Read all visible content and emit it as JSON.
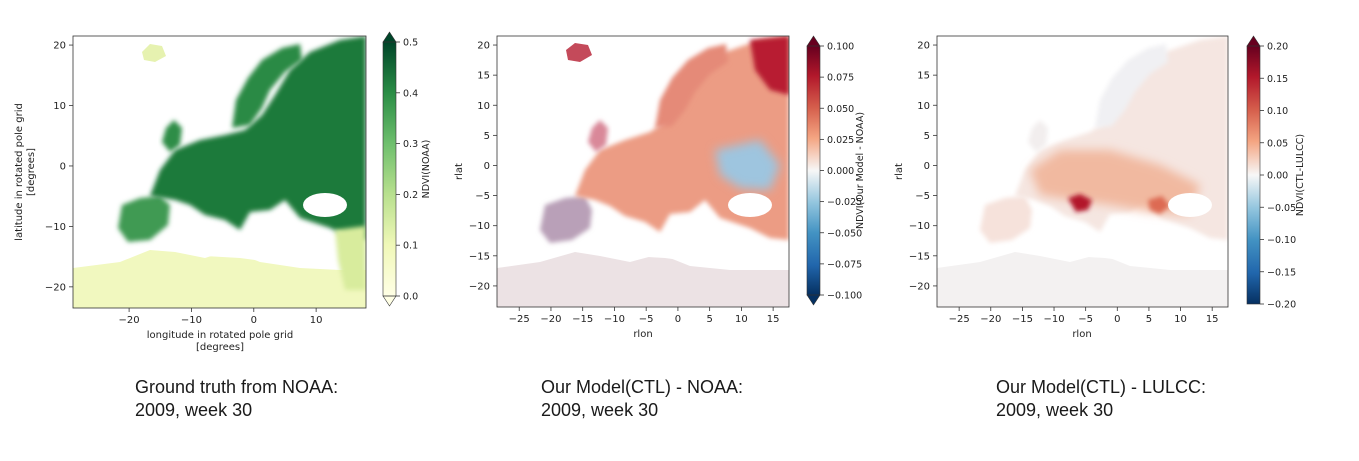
{
  "chart_data": [
    {
      "type": "heatmap",
      "xlabel": "longitude in rotated pole grid\n[degrees]",
      "ylabel": "latitude in rotated pole grid\n[degrees]",
      "xticks": [
        -20,
        -10,
        0,
        10
      ],
      "yticks": [
        -20,
        -10,
        0,
        10,
        20
      ],
      "xlim": [
        -29,
        18
      ],
      "ylim": [
        -23.5,
        21.5
      ],
      "colorbar": {
        "label": "NDVI(NOAA)",
        "colormap": "YlGn",
        "range": [
          0.0,
          0.5
        ],
        "ticks": [
          "0.0",
          "0.1",
          "0.2",
          "0.3",
          "0.4",
          "0.5"
        ],
        "extend": "both"
      },
      "caption": [
        "Ground truth from NOAA:",
        "2009, week 30"
      ]
    },
    {
      "type": "heatmap",
      "xlabel": "rlon",
      "ylabel": "rlat",
      "xticks": [
        -25,
        -20,
        -15,
        -10,
        -5,
        0,
        5,
        10,
        15
      ],
      "yticks": [
        -20,
        -15,
        -10,
        -5,
        0,
        5,
        10,
        15,
        20
      ],
      "xlim": [
        -28.5,
        17.5
      ],
      "ylim": [
        -23.5,
        21.5
      ],
      "colorbar": {
        "label": "NDVI(Our Model - NOAA)",
        "colormap": "RdBu_r",
        "range": [
          -0.1,
          0.1
        ],
        "ticks": [
          "-0.100",
          "-0.075",
          "-0.050",
          "-0.025",
          "0.000",
          "0.025",
          "0.050",
          "0.075",
          "0.100"
        ],
        "extend": "both"
      },
      "caption": [
        "Our Model(CTL)  - NOAA:",
        "2009, week 30"
      ]
    },
    {
      "type": "heatmap",
      "xlabel": "rlon",
      "ylabel": "rlat",
      "xticks": [
        -25,
        -20,
        -15,
        -10,
        -5,
        0,
        5,
        10,
        15
      ],
      "yticks": [
        -20,
        -15,
        -10,
        -5,
        0,
        5,
        10,
        15,
        20
      ],
      "xlim": [
        -28.5,
        17.5
      ],
      "ylim": [
        -23.5,
        21.5
      ],
      "colorbar": {
        "label": "NDVI(CTL-LULCC)",
        "colormap": "RdBu_r",
        "range": [
          -0.2,
          0.2
        ],
        "ticks": [
          "-0.20",
          "-0.15",
          "-0.10",
          "-0.05",
          "0.00",
          "0.05",
          "0.10",
          "0.15",
          "0.20"
        ],
        "extend": "max"
      },
      "caption": [
        "Our Model(CTL)  - LULCC:",
        "2009, week 30"
      ]
    }
  ]
}
